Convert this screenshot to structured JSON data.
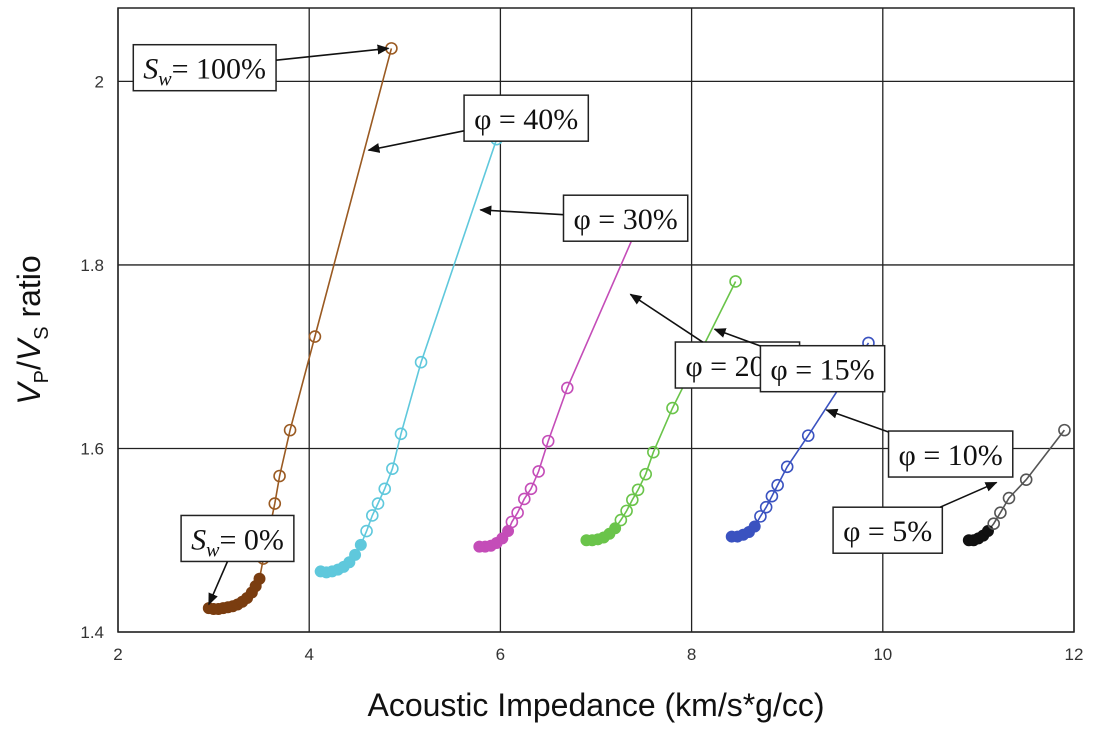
{
  "chart_data": {
    "type": "scatter",
    "xlabel": "Acoustic Impedance (km/s*g/cc)",
    "ylabel": {
      "v1": "V",
      "s1": "P",
      "slash": "/",
      "v2": "V",
      "s2": "S",
      "rest": " ratio"
    },
    "xlim": [
      2,
      12
    ],
    "ylim": [
      1.4,
      2.08
    ],
    "x_ticks": [
      "2",
      "4",
      "6",
      "8",
      "10",
      "12"
    ],
    "y_ticks": [
      "1.4",
      "1.6",
      "1.8",
      "2"
    ],
    "grid": true,
    "series": [
      {
        "name": "φ = 40%",
        "color": "#9a5a22",
        "fill": "#7a3d10",
        "dense_x": [
          2.95,
          3.0,
          3.05,
          3.1,
          3.15,
          3.2,
          3.25,
          3.3,
          3.35,
          3.4,
          3.44,
          3.48
        ],
        "dense_y": [
          1.426,
          1.425,
          1.425,
          1.426,
          1.427,
          1.428,
          1.43,
          1.433,
          1.437,
          1.443,
          1.45,
          1.458
        ],
        "x": [
          3.52,
          3.56,
          3.6,
          3.64,
          3.69,
          3.8,
          4.06,
          4.86
        ],
        "y": [
          1.48,
          1.503,
          1.52,
          1.54,
          1.57,
          1.62,
          1.722,
          2.036
        ]
      },
      {
        "name": "φ = 30%",
        "color": "#5fc8dc",
        "fill": "#5fc8dc",
        "dense_x": [
          4.12,
          4.18,
          4.24,
          4.3,
          4.36,
          4.42,
          4.48,
          4.54
        ],
        "dense_y": [
          1.466,
          1.465,
          1.466,
          1.468,
          1.471,
          1.476,
          1.484,
          1.495
        ],
        "x": [
          4.6,
          4.66,
          4.72,
          4.79,
          4.87,
          4.96,
          5.17,
          5.96
        ],
        "y": [
          1.51,
          1.527,
          1.54,
          1.556,
          1.578,
          1.616,
          1.694,
          1.937
        ]
      },
      {
        "name": "φ = 20%",
        "color": "#c44db8",
        "fill": "#c44db8",
        "dense_x": [
          5.78,
          5.84,
          5.9,
          5.96,
          6.02,
          6.08
        ],
        "dense_y": [
          1.493,
          1.493,
          1.494,
          1.497,
          1.502,
          1.51
        ],
        "x": [
          6.12,
          6.18,
          6.25,
          6.32,
          6.4,
          6.5,
          6.7,
          7.42
        ],
        "y": [
          1.52,
          1.53,
          1.545,
          1.556,
          1.575,
          1.608,
          1.666,
          1.838
        ]
      },
      {
        "name": "φ = 15%",
        "color": "#6ac44a",
        "fill": "#6ac44a",
        "dense_x": [
          6.9,
          6.96,
          7.02,
          7.08,
          7.14,
          7.2
        ],
        "dense_y": [
          1.5,
          1.5,
          1.501,
          1.503,
          1.507,
          1.513
        ],
        "x": [
          7.26,
          7.32,
          7.38,
          7.44,
          7.52,
          7.6,
          7.8,
          8.46
        ],
        "y": [
          1.522,
          1.532,
          1.544,
          1.555,
          1.572,
          1.596,
          1.644,
          1.782
        ]
      },
      {
        "name": "φ = 10%",
        "color": "#3a52c0",
        "fill": "#3a52c0",
        "dense_x": [
          8.42,
          8.48,
          8.54,
          8.6,
          8.66
        ],
        "dense_y": [
          1.504,
          1.504,
          1.506,
          1.509,
          1.515
        ],
        "x": [
          8.72,
          8.78,
          8.84,
          8.9,
          9.0,
          9.22,
          9.85
        ],
        "y": [
          1.526,
          1.536,
          1.548,
          1.56,
          1.58,
          1.614,
          1.715
        ]
      },
      {
        "name": "φ = 5%",
        "color": "#555555",
        "fill": "#111111",
        "dense_x": [
          10.9,
          10.95,
          11.0,
          11.05,
          11.1
        ],
        "dense_y": [
          1.5,
          1.5,
          1.502,
          1.505,
          1.51
        ],
        "x": [
          11.16,
          11.23,
          11.32,
          11.5,
          11.9
        ],
        "y": [
          1.518,
          1.53,
          1.546,
          1.566,
          1.62
        ]
      }
    ],
    "annotations": [
      {
        "id": "sw100",
        "text": "= 100%",
        "prefix": "S",
        "sub": "w",
        "box": [
          2.16,
          2.04
        ],
        "tip": [
          4.83,
          2.036
        ]
      },
      {
        "id": "phi40",
        "text": "φ = 40%",
        "box": [
          5.62,
          1.985
        ],
        "tip": [
          4.62,
          1.925
        ]
      },
      {
        "id": "phi30",
        "text": "φ = 30%",
        "box": [
          6.66,
          1.876
        ],
        "tip": [
          5.79,
          1.86
        ]
      },
      {
        "id": "phi20",
        "text": "φ = 20%",
        "box": [
          7.83,
          1.716
        ],
        "tip": [
          7.36,
          1.768
        ]
      },
      {
        "id": "phi15",
        "text": "φ = 15%",
        "box": [
          8.72,
          1.712
        ],
        "tip": [
          8.24,
          1.73
        ]
      },
      {
        "id": "phi10",
        "text": "φ = 10%",
        "box": [
          10.06,
          1.619
        ],
        "tip": [
          9.41,
          1.642
        ]
      },
      {
        "id": "phi5",
        "text": "φ = 5%",
        "box": [
          9.48,
          1.536
        ],
        "tip": [
          11.19,
          1.563
        ]
      },
      {
        "id": "sw0",
        "text": "= 0%",
        "prefix": "S",
        "sub": "w",
        "box": [
          2.66,
          1.527
        ],
        "tip": [
          2.95,
          1.43
        ]
      }
    ]
  }
}
